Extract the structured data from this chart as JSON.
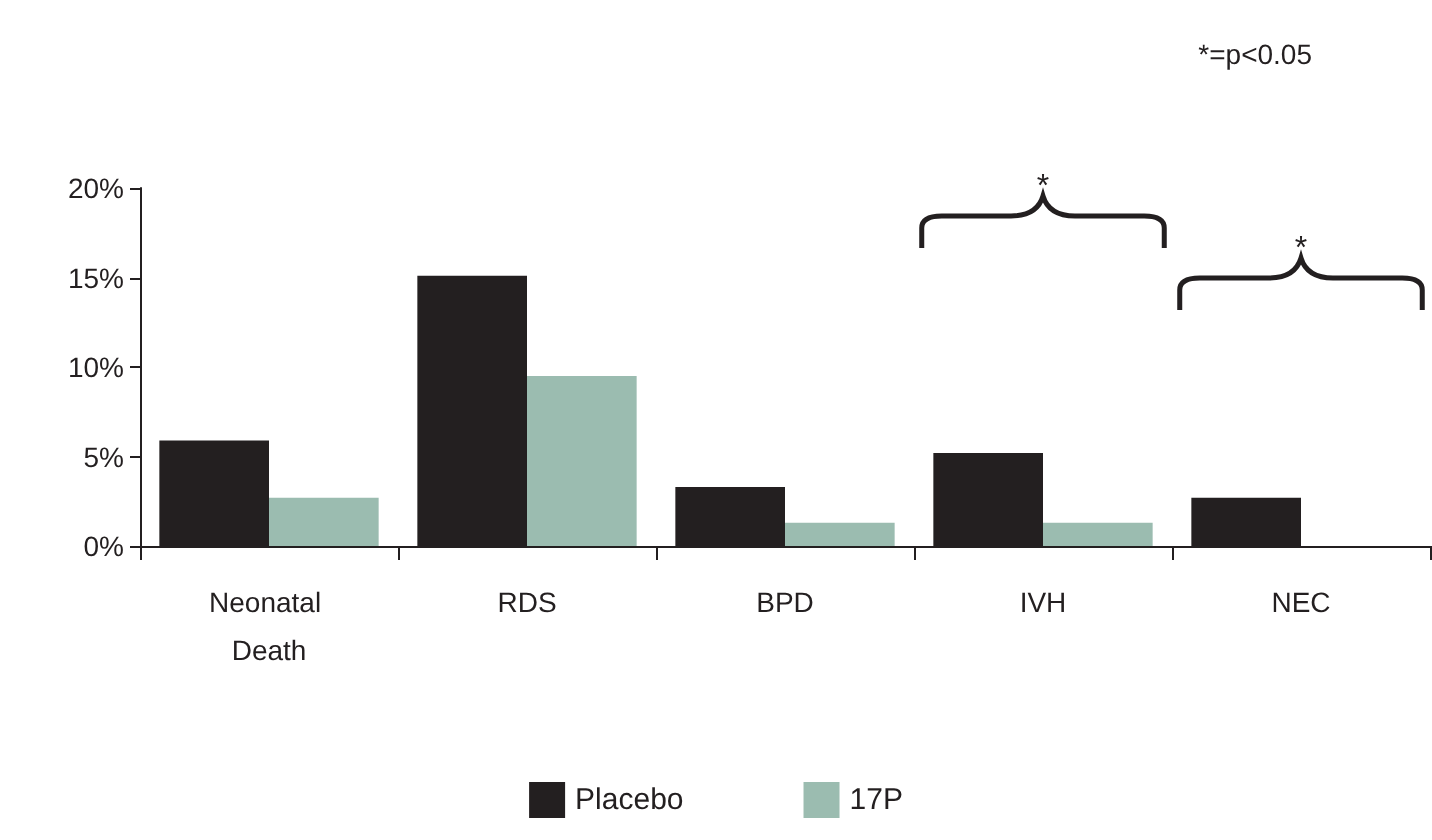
{
  "chart_data": {
    "type": "bar",
    "categories": [
      "Neonatal Death",
      "RDS",
      "BPD",
      "IVH",
      "NEC"
    ],
    "series": [
      {
        "name": "Placebo",
        "color": "#231f20",
        "values": [
          5.9,
          15.1,
          3.3,
          5.2,
          2.7
        ]
      },
      {
        "name": "17P",
        "color": "#9bbcb0",
        "values": [
          2.7,
          9.5,
          1.3,
          1.3,
          0
        ]
      }
    ],
    "ylim": [
      0,
      20
    ],
    "yticks": [
      {
        "value": 0,
        "label": "0%"
      },
      {
        "value": 5,
        "label": "5%"
      },
      {
        "value": 10,
        "label": "10%"
      },
      {
        "value": 15,
        "label": "15%"
      },
      {
        "value": 20,
        "label": "20%"
      }
    ],
    "grid": false,
    "legend": "bottom",
    "annotations": [
      "*=p<0.05",
      "*",
      "*"
    ]
  }
}
